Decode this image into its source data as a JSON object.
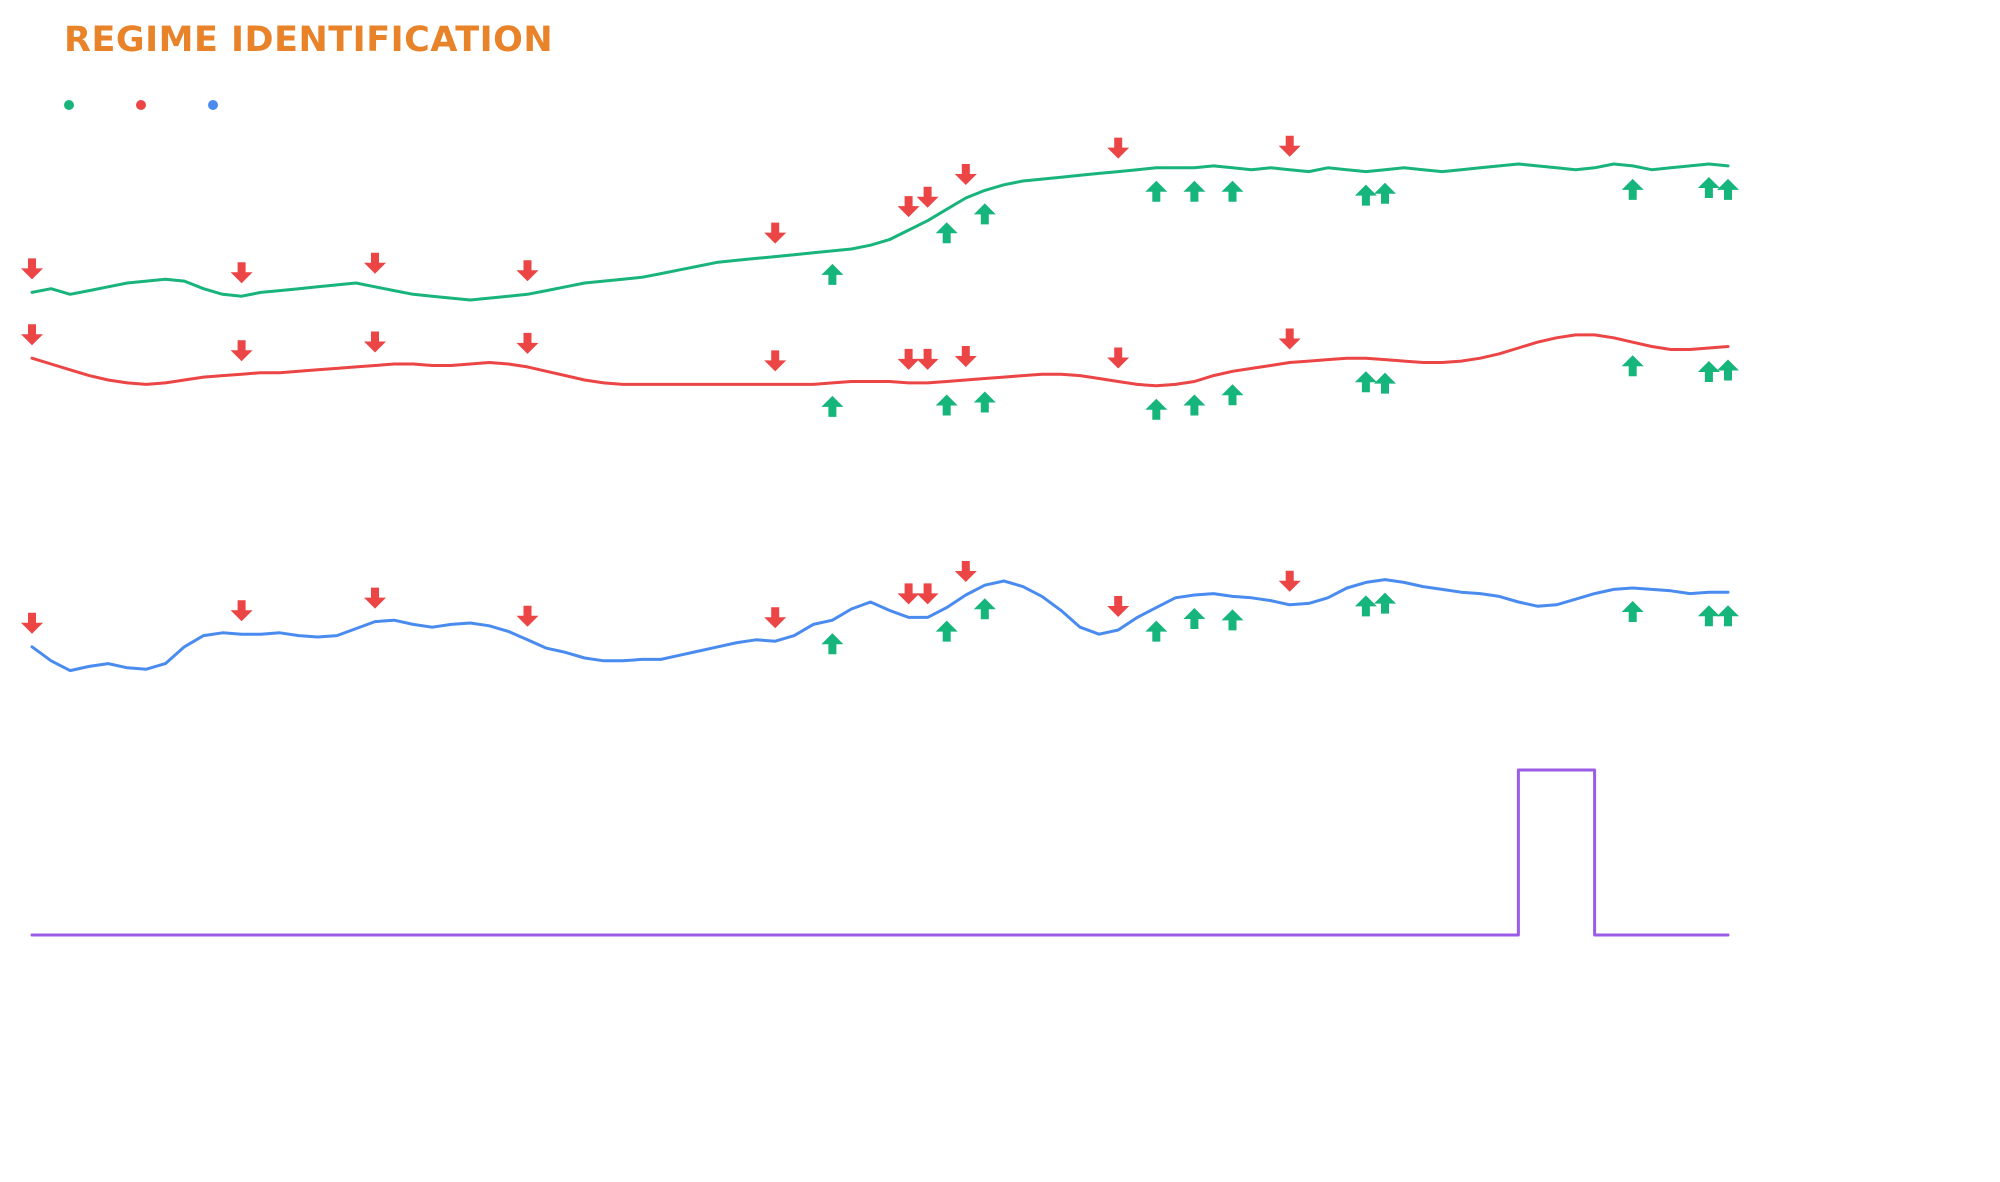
{
  "title": "REGIME IDENTIFICATION",
  "legend": [
    {
      "name": "",
      "color": "#18b47b"
    },
    {
      "name": "",
      "color": "#ec4545"
    },
    {
      "name": "",
      "color": "#4a8bef"
    }
  ],
  "colors": {
    "title": "#e8832a",
    "buy_marker": "#16b57c",
    "sell_marker": "#ec4545",
    "regime": "#9b5ce6"
  },
  "chart_data": {
    "type": "line",
    "title": "REGIME IDENTIFICATION",
    "grid": false,
    "x": [
      0,
      1,
      2,
      3,
      4,
      5,
      6,
      7,
      8,
      9,
      10,
      11,
      12,
      13,
      14,
      15,
      16,
      17,
      18,
      19,
      20,
      21,
      22,
      23,
      24,
      25,
      26,
      27,
      28,
      29,
      30,
      31,
      32,
      33,
      34,
      35,
      36,
      37,
      38,
      39,
      40,
      41,
      42,
      43,
      44,
      45,
      46,
      47,
      48,
      49,
      50,
      51,
      52,
      53,
      54,
      55,
      56,
      57,
      58,
      59,
      60,
      61,
      62,
      63,
      64,
      65,
      66,
      67,
      68,
      69,
      70,
      71,
      72,
      73,
      74,
      75,
      76,
      77,
      78,
      79,
      80,
      81,
      82,
      83,
      84,
      85,
      86,
      87,
      88,
      89
    ],
    "series": [
      {
        "name": "",
        "color": "#18b47b",
        "values": [
          0.2,
          0.3,
          0.15,
          0.25,
          0.35,
          0.45,
          0.5,
          0.55,
          0.5,
          0.3,
          0.15,
          0.1,
          0.2,
          0.25,
          0.3,
          0.35,
          0.4,
          0.45,
          0.35,
          0.25,
          0.15,
          0.1,
          0.05,
          0.0,
          0.05,
          0.1,
          0.15,
          0.25,
          0.35,
          0.45,
          0.5,
          0.55,
          0.6,
          0.7,
          0.8,
          0.9,
          1.0,
          1.05,
          1.1,
          1.15,
          1.2,
          1.25,
          1.3,
          1.35,
          1.45,
          1.6,
          1.85,
          2.1,
          2.4,
          2.7,
          2.9,
          3.05,
          3.15,
          3.2,
          3.25,
          3.3,
          3.35,
          3.4,
          3.45,
          3.5,
          3.5,
          3.5,
          3.55,
          3.5,
          3.45,
          3.5,
          3.45,
          3.4,
          3.5,
          3.45,
          3.4,
          3.45,
          3.5,
          3.45,
          3.4,
          3.45,
          3.5,
          3.55,
          3.6,
          3.55,
          3.5,
          3.45,
          3.5,
          3.6,
          3.55,
          3.45,
          3.5,
          3.55,
          3.6,
          3.55
        ]
      },
      {
        "name": "",
        "color": "#ec4545",
        "values": [
          3.5,
          3.3,
          3.1,
          2.9,
          2.75,
          2.65,
          2.6,
          2.65,
          2.75,
          2.85,
          2.9,
          2.95,
          3.0,
          3.0,
          3.05,
          3.1,
          3.15,
          3.2,
          3.25,
          3.3,
          3.3,
          3.25,
          3.25,
          3.3,
          3.35,
          3.3,
          3.2,
          3.05,
          2.9,
          2.75,
          2.65,
          2.6,
          2.6,
          2.6,
          2.6,
          2.6,
          2.6,
          2.6,
          2.6,
          2.6,
          2.6,
          2.6,
          2.65,
          2.7,
          2.7,
          2.7,
          2.65,
          2.65,
          2.7,
          2.75,
          2.8,
          2.85,
          2.9,
          2.95,
          2.95,
          2.9,
          2.8,
          2.7,
          2.6,
          2.55,
          2.6,
          2.7,
          2.9,
          3.05,
          3.15,
          3.25,
          3.35,
          3.4,
          3.45,
          3.5,
          3.5,
          3.45,
          3.4,
          3.35,
          3.35,
          3.4,
          3.5,
          3.65,
          3.85,
          4.05,
          4.2,
          4.3,
          4.3,
          4.2,
          4.05,
          3.9,
          3.8,
          3.8,
          3.85,
          3.9
        ]
      },
      {
        "name": "",
        "color": "#4a8bef",
        "values": [
          1.9,
          1.4,
          1.05,
          1.2,
          1.3,
          1.15,
          1.1,
          1.3,
          1.9,
          2.3,
          2.4,
          2.35,
          2.35,
          2.4,
          2.3,
          2.25,
          2.3,
          2.55,
          2.8,
          2.85,
          2.7,
          2.6,
          2.7,
          2.75,
          2.65,
          2.45,
          2.15,
          1.85,
          1.7,
          1.5,
          1.4,
          1.4,
          1.45,
          1.45,
          1.6,
          1.75,
          1.9,
          2.05,
          2.15,
          2.1,
          2.3,
          2.7,
          2.85,
          3.25,
          3.5,
          3.2,
          2.95,
          2.95,
          3.3,
          3.75,
          4.1,
          4.25,
          4.05,
          3.7,
          3.2,
          2.6,
          2.35,
          2.5,
          2.95,
          3.3,
          3.65,
          3.75,
          3.8,
          3.7,
          3.65,
          3.55,
          3.4,
          3.45,
          3.65,
          4.0,
          4.2,
          4.3,
          4.2,
          4.05,
          3.95,
          3.85,
          3.8,
          3.7,
          3.5,
          3.35,
          3.4,
          3.6,
          3.8,
          3.95,
          4.0,
          3.95,
          3.9,
          3.8,
          3.85,
          3.85
        ]
      },
      {
        "name": "",
        "color": "#9b5ce6",
        "values": [
          0,
          0,
          0,
          0,
          0,
          0,
          0,
          0,
          0,
          0,
          0,
          0,
          0,
          0,
          0,
          0,
          0,
          0,
          0,
          0,
          0,
          0,
          0,
          0,
          0,
          0,
          0,
          0,
          0,
          0,
          0,
          0,
          0,
          0,
          0,
          0,
          0,
          0,
          0,
          0,
          0,
          0,
          0,
          0,
          0,
          0,
          0,
          0,
          0,
          0,
          0,
          0,
          0,
          0,
          0,
          0,
          0,
          0,
          0,
          0,
          0,
          0,
          0,
          0,
          0,
          0,
          0,
          0,
          0,
          0,
          0,
          0,
          0,
          0,
          0,
          0,
          0,
          0,
          1,
          1,
          1,
          1,
          0,
          0,
          0,
          0,
          0,
          0,
          0,
          0
        ]
      }
    ],
    "sell_signals": [
      0,
      11,
      18,
      26,
      39,
      46,
      47,
      49,
      57,
      66
    ],
    "buy_signals": [
      42,
      48,
      50,
      59,
      61,
      63,
      70,
      71,
      84,
      88,
      89
    ]
  }
}
